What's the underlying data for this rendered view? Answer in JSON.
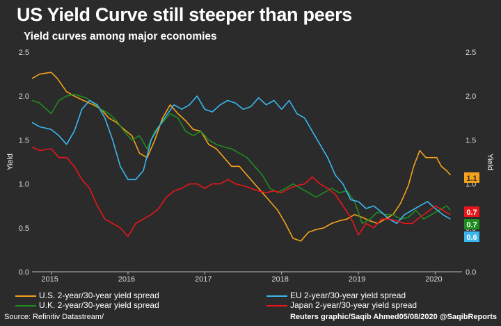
{
  "title": "US Yield Curve still steeper than peers",
  "subtitle": "Yield curves among major economies",
  "footer": {
    "source": "Source: Refinitiv Datastream/",
    "credit": "Reuters graphic/Saqib Ahmed05/08/2020 @SaqibReports"
  },
  "chart_data": {
    "type": "line",
    "ylabel_left": "Yield",
    "ylabel_right": "Yield",
    "ylim": [
      0,
      2.5
    ],
    "yticks": [
      "0.0",
      "0.5",
      "1.0",
      "1.5",
      "2.0",
      "2.5"
    ],
    "xlim": [
      2014.75,
      2020.35
    ],
    "xticks": [
      {
        "label": "2015",
        "value": 2015.0
      },
      {
        "label": "2016",
        "value": 2016.0
      },
      {
        "label": "2017",
        "value": 2017.0
      },
      {
        "label": "2018",
        "value": 2018.0
      },
      {
        "label": "2019",
        "value": 2019.0
      },
      {
        "label": "2020",
        "value": 2020.0
      }
    ],
    "grid": false,
    "legend": "bottom",
    "series": [
      {
        "name": "U.S. 2-year/30-year yield spread",
        "color": "#f5a21a",
        "end_label": "1.1",
        "x": [
          2014.75,
          2014.85,
          2015.0,
          2015.08,
          2015.2,
          2015.3,
          2015.42,
          2015.55,
          2015.65,
          2015.75,
          2015.85,
          2015.95,
          2016.05,
          2016.15,
          2016.25,
          2016.35,
          2016.45,
          2016.55,
          2016.65,
          2016.75,
          2016.85,
          2016.95,
          2017.05,
          2017.15,
          2017.25,
          2017.35,
          2017.45,
          2017.55,
          2017.65,
          2017.75,
          2017.85,
          2017.95,
          2018.05,
          2018.15,
          2018.25,
          2018.35,
          2018.45,
          2018.55,
          2018.65,
          2018.75,
          2018.85,
          2018.95,
          2019.05,
          2019.15,
          2019.25,
          2019.35,
          2019.45,
          2019.55,
          2019.65,
          2019.72,
          2019.8,
          2019.88,
          2019.95,
          2020.02,
          2020.08,
          2020.15,
          2020.2
        ],
        "y": [
          2.2,
          2.25,
          2.27,
          2.2,
          2.05,
          2.0,
          1.95,
          1.9,
          1.85,
          1.75,
          1.7,
          1.62,
          1.55,
          1.35,
          1.3,
          1.5,
          1.75,
          1.9,
          1.8,
          1.72,
          1.62,
          1.6,
          1.45,
          1.4,
          1.3,
          1.2,
          1.2,
          1.1,
          1.0,
          0.9,
          0.8,
          0.7,
          0.55,
          0.38,
          0.35,
          0.45,
          0.48,
          0.5,
          0.55,
          0.58,
          0.6,
          0.65,
          0.62,
          0.58,
          0.55,
          0.6,
          0.65,
          0.78,
          0.98,
          1.2,
          1.38,
          1.3,
          1.3,
          1.3,
          1.2,
          1.15,
          1.1
        ]
      },
      {
        "name": "U.K. 2-year/30-year yield spread",
        "color": "#1f8c1f",
        "end_label": "0.7",
        "x": [
          2014.75,
          2014.85,
          2015.0,
          2015.1,
          2015.2,
          2015.3,
          2015.45,
          2015.55,
          2015.65,
          2015.75,
          2015.85,
          2015.95,
          2016.05,
          2016.15,
          2016.25,
          2016.35,
          2016.45,
          2016.55,
          2016.65,
          2016.75,
          2016.85,
          2016.95,
          2017.05,
          2017.15,
          2017.25,
          2017.35,
          2017.45,
          2017.55,
          2017.65,
          2017.75,
          2017.85,
          2017.95,
          2018.05,
          2018.15,
          2018.25,
          2018.35,
          2018.45,
          2018.55,
          2018.65,
          2018.75,
          2018.85,
          2018.95,
          2019.05,
          2019.15,
          2019.25,
          2019.35,
          2019.45,
          2019.55,
          2019.65,
          2019.75,
          2019.85,
          2019.95,
          2020.05,
          2020.15,
          2020.2
        ],
        "y": [
          1.95,
          1.92,
          1.8,
          1.95,
          2.0,
          2.02,
          1.98,
          1.92,
          1.85,
          1.8,
          1.72,
          1.6,
          1.5,
          1.55,
          1.4,
          1.6,
          1.7,
          1.8,
          1.75,
          1.6,
          1.55,
          1.6,
          1.5,
          1.45,
          1.42,
          1.4,
          1.35,
          1.3,
          1.2,
          1.1,
          0.95,
          0.9,
          0.95,
          1.0,
          0.95,
          0.9,
          0.85,
          0.9,
          0.95,
          0.9,
          0.92,
          0.8,
          0.55,
          0.6,
          0.68,
          0.65,
          0.65,
          0.6,
          0.62,
          0.7,
          0.6,
          0.65,
          0.7,
          0.75,
          0.7
        ]
      },
      {
        "name": "EU 2-year/30-year yield spread",
        "color": "#3ab7f0",
        "end_label": "0.6",
        "x": [
          2014.75,
          2014.85,
          2015.0,
          2015.1,
          2015.2,
          2015.3,
          2015.4,
          2015.5,
          2015.6,
          2015.7,
          2015.8,
          2015.9,
          2016.0,
          2016.1,
          2016.2,
          2016.3,
          2016.4,
          2016.5,
          2016.6,
          2016.7,
          2016.8,
          2016.9,
          2017.0,
          2017.1,
          2017.2,
          2017.3,
          2017.4,
          2017.5,
          2017.6,
          2017.7,
          2017.8,
          2017.9,
          2018.0,
          2018.1,
          2018.2,
          2018.3,
          2018.4,
          2018.5,
          2018.6,
          2018.7,
          2018.8,
          2018.9,
          2019.0,
          2019.1,
          2019.2,
          2019.3,
          2019.4,
          2019.5,
          2019.6,
          2019.7,
          2019.8,
          2019.9,
          2020.0,
          2020.1,
          2020.2
        ],
        "y": [
          1.7,
          1.65,
          1.62,
          1.55,
          1.45,
          1.6,
          1.85,
          1.95,
          1.9,
          1.75,
          1.5,
          1.2,
          1.05,
          1.05,
          1.15,
          1.5,
          1.65,
          1.78,
          1.9,
          1.85,
          1.9,
          2.0,
          1.85,
          1.82,
          1.9,
          1.95,
          1.92,
          1.85,
          1.88,
          1.98,
          1.9,
          1.95,
          1.85,
          1.95,
          1.8,
          1.75,
          1.6,
          1.45,
          1.3,
          1.1,
          1.0,
          0.82,
          0.8,
          0.72,
          0.75,
          0.68,
          0.6,
          0.55,
          0.65,
          0.7,
          0.75,
          0.8,
          0.72,
          0.65,
          0.6
        ]
      },
      {
        "name": "Japan 2-year/30-year yield spread",
        "color": "#e8161b",
        "end_label": "0.7",
        "x": [
          2014.75,
          2014.85,
          2015.0,
          2015.1,
          2015.2,
          2015.3,
          2015.4,
          2015.5,
          2015.6,
          2015.7,
          2015.8,
          2015.9,
          2016.0,
          2016.1,
          2016.2,
          2016.3,
          2016.4,
          2016.5,
          2016.6,
          2016.7,
          2016.8,
          2016.9,
          2017.0,
          2017.1,
          2017.2,
          2017.3,
          2017.4,
          2017.5,
          2017.6,
          2017.7,
          2017.8,
          2017.9,
          2018.0,
          2018.1,
          2018.2,
          2018.3,
          2018.4,
          2018.5,
          2018.6,
          2018.7,
          2018.8,
          2018.9,
          2019.0,
          2019.1,
          2019.2,
          2019.3,
          2019.4,
          2019.5,
          2019.6,
          2019.7,
          2019.8,
          2019.9,
          2020.0,
          2020.1,
          2020.2
        ],
        "y": [
          1.42,
          1.38,
          1.4,
          1.3,
          1.3,
          1.2,
          1.05,
          0.95,
          0.75,
          0.6,
          0.55,
          0.5,
          0.4,
          0.55,
          0.6,
          0.65,
          0.72,
          0.85,
          0.92,
          0.95,
          1.0,
          1.0,
          0.95,
          1.0,
          1.0,
          1.05,
          1.0,
          0.98,
          0.95,
          0.92,
          0.9,
          0.92,
          0.9,
          0.95,
          0.98,
          1.0,
          1.08,
          1.0,
          0.95,
          0.88,
          0.75,
          0.62,
          0.42,
          0.55,
          0.5,
          0.6,
          0.6,
          0.58,
          0.55,
          0.55,
          0.62,
          0.68,
          0.75,
          0.7,
          0.65
        ]
      }
    ]
  }
}
